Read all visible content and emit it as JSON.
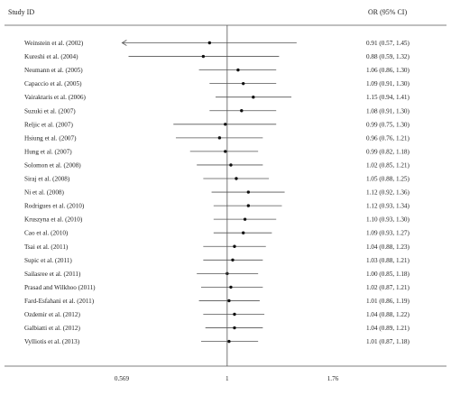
{
  "chart_data": {
    "type": "forest",
    "headers": {
      "study": "Study ID",
      "effect": "OR (95% CI)"
    },
    "xscale": "log",
    "xlim": [
      0.569,
      1.76
    ],
    "xticks": [
      0.569,
      1,
      1.76
    ],
    "xtick_labels": [
      "0.569",
      "1",
      "1.76"
    ],
    "reference_line": 1,
    "line_color": "#555555",
    "studies": [
      {
        "label": "Weinstein et al. (2002)",
        "or": 0.91,
        "lo": 0.57,
        "hi": 1.45,
        "ci_text": "0.91 (0.57, 1.45)",
        "arrow_left": true
      },
      {
        "label": "Kureshi et al. (2004)",
        "or": 0.88,
        "lo": 0.59,
        "hi": 1.32,
        "ci_text": "0.88 (0.59, 1.32)"
      },
      {
        "label": "Neumann et al. (2005)",
        "or": 1.06,
        "lo": 0.86,
        "hi": 1.3,
        "ci_text": "1.06 (0.86, 1.30)"
      },
      {
        "label": "Capaccio et al. (2005)",
        "or": 1.09,
        "lo": 0.91,
        "hi": 1.3,
        "ci_text": "1.09 (0.91, 1.30)"
      },
      {
        "label": "Vairaktaris et al. (2006)",
        "or": 1.15,
        "lo": 0.94,
        "hi": 1.41,
        "ci_text": "1.15 (0.94, 1.41)"
      },
      {
        "label": "Suzuki et al. (2007)",
        "or": 1.08,
        "lo": 0.91,
        "hi": 1.3,
        "ci_text": "1.08 (0.91, 1.30)"
      },
      {
        "label": "Reljic et al. (2007)",
        "or": 0.99,
        "lo": 0.75,
        "hi": 1.3,
        "ci_text": "0.99 (0.75, 1.30)"
      },
      {
        "label": "Hsiung et al. (2007)",
        "or": 0.96,
        "lo": 0.76,
        "hi": 1.21,
        "ci_text": "0.96 (0.76, 1.21)"
      },
      {
        "label": "Hung et al. (2007)",
        "or": 0.99,
        "lo": 0.82,
        "hi": 1.18,
        "ci_text": "0.99 (0.82, 1.18)"
      },
      {
        "label": "Solomon et al. (2008)",
        "or": 1.02,
        "lo": 0.85,
        "hi": 1.21,
        "ci_text": "1.02 (0.85, 1.21)"
      },
      {
        "label": "Siraj et al. (2008)",
        "or": 1.05,
        "lo": 0.88,
        "hi": 1.25,
        "ci_text": "1.05 (0.88, 1.25)"
      },
      {
        "label": "Ni et al. (2008)",
        "or": 1.12,
        "lo": 0.92,
        "hi": 1.36,
        "ci_text": "1.12 (0.92, 1.36)"
      },
      {
        "label": "Rodrigues et al. (2010)",
        "or": 1.12,
        "lo": 0.93,
        "hi": 1.34,
        "ci_text": "1.12 (0.93, 1.34)"
      },
      {
        "label": "Kruszyna et al. (2010)",
        "or": 1.1,
        "lo": 0.93,
        "hi": 1.3,
        "ci_text": "1.10 (0.93, 1.30)"
      },
      {
        "label": "Cao et al. (2010)",
        "or": 1.09,
        "lo": 0.93,
        "hi": 1.27,
        "ci_text": "1.09 (0.93, 1.27)"
      },
      {
        "label": "Tsai et al. (2011)",
        "or": 1.04,
        "lo": 0.88,
        "hi": 1.23,
        "ci_text": "1.04 (0.88, 1.23)"
      },
      {
        "label": "Supic et al. (2011)",
        "or": 1.03,
        "lo": 0.88,
        "hi": 1.21,
        "ci_text": "1.03 (0.88, 1.21)"
      },
      {
        "label": "Sailasree et al. (2011)",
        "or": 1.0,
        "lo": 0.85,
        "hi": 1.18,
        "ci_text": "1.00 (0.85, 1.18)"
      },
      {
        "label": "Prasad and Wilkhoo (2011)",
        "or": 1.02,
        "lo": 0.87,
        "hi": 1.21,
        "ci_text": "1.02 (0.87, 1.21)"
      },
      {
        "label": "Fard-Esfahani et al. (2011)",
        "or": 1.01,
        "lo": 0.86,
        "hi": 1.19,
        "ci_text": "1.01 (0.86, 1.19)"
      },
      {
        "label": "Ozdemir et al. (2012)",
        "or": 1.04,
        "lo": 0.88,
        "hi": 1.22,
        "ci_text": "1.04 (0.88, 1.22)"
      },
      {
        "label": "Galbiatti et al. (2012)",
        "or": 1.04,
        "lo": 0.89,
        "hi": 1.21,
        "ci_text": "1.04 (0.89, 1.21)"
      },
      {
        "label": "Vylliotis et al. (2013)",
        "or": 1.01,
        "lo": 0.87,
        "hi": 1.18,
        "ci_text": "1.01 (0.87, 1.18)"
      }
    ]
  }
}
